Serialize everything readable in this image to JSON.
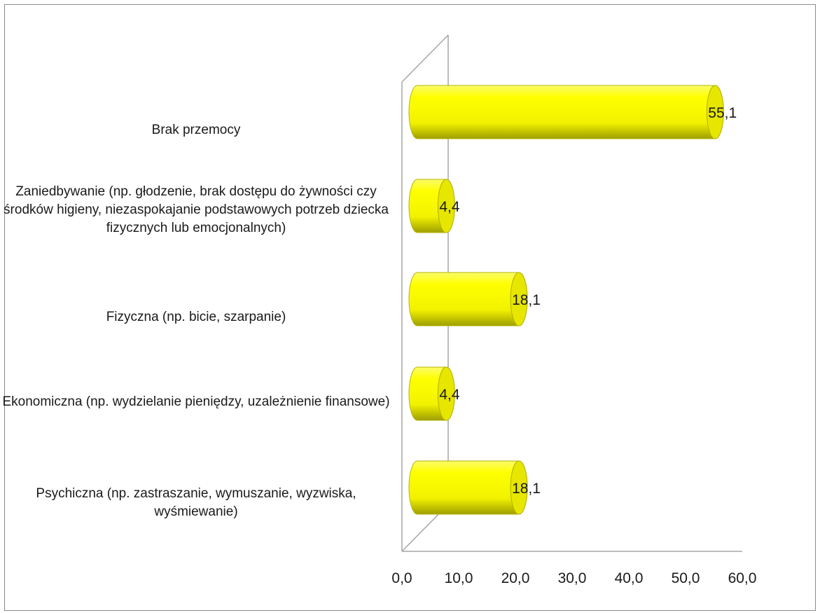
{
  "chart_data": {
    "type": "bar",
    "orientation": "horizontal",
    "style": "3d-cylinder",
    "categories": [
      "Brak przemocy",
      "Zaniedbywanie (np. głodzenie, brak dostępu do żywności czy środków higieny, niezaspokajanie podstawowych potrzeb dziecka fizycznych lub emocjonalnych)",
      "Fizyczna (np. bicie, szarpanie)",
      "Ekonomiczna (np. wydzielanie pieniędzy, uzależnienie finansowe)",
      "Psychiczna (np. zastraszanie, wymuszanie, wyzwiska, wyśmiewanie)"
    ],
    "values": [
      55.1,
      4.4,
      18.1,
      4.4,
      18.1
    ],
    "value_labels": [
      "55,1",
      "4,4",
      "18,1",
      "4,4",
      "18,1"
    ],
    "x_ticks": [
      "0,0",
      "10,0",
      "20,0",
      "30,0",
      "40,0",
      "50,0",
      "60,0"
    ],
    "xlim": [
      0,
      60
    ],
    "title": "",
    "xlabel": "",
    "ylabel": "",
    "grid": false,
    "legend": "none",
    "colors": {
      "bar": "#ffff00",
      "bar_shade": "#b8b800",
      "bar_cap": "#e6e600",
      "axis": "#a6a6a6",
      "frame": "#8c8c8c"
    }
  }
}
